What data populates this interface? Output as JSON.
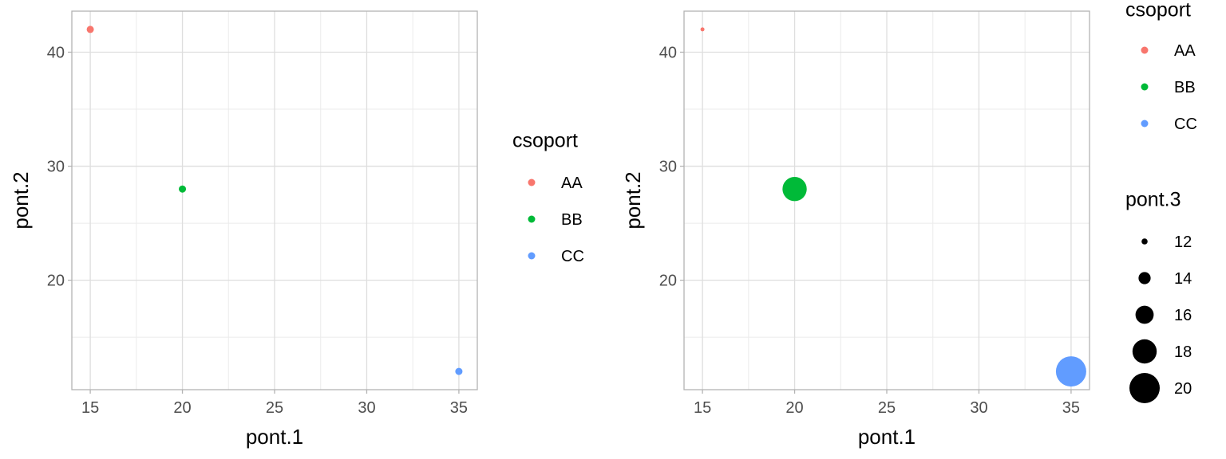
{
  "chart_data": [
    {
      "type": "scatter",
      "xlabel": "pont.1",
      "ylabel": "pont.2",
      "xlim": [
        14,
        36
      ],
      "ylim": [
        10.4,
        43.6
      ],
      "xticks": [
        15,
        20,
        25,
        30,
        35
      ],
      "yticks": [
        20,
        30,
        40
      ],
      "grid": true,
      "legend_position": "right",
      "color_legend": {
        "title": "csoport",
        "entries": [
          {
            "label": "AA",
            "color": "#F8766D"
          },
          {
            "label": "BB",
            "color": "#00BA38"
          },
          {
            "label": "CC",
            "color": "#619CFF"
          }
        ]
      },
      "points": [
        {
          "x": 15,
          "y": 42,
          "group": "AA"
        },
        {
          "x": 20,
          "y": 28,
          "group": "BB"
        },
        {
          "x": 35,
          "y": 12,
          "group": "CC"
        }
      ]
    },
    {
      "type": "scatter",
      "xlabel": "pont.1",
      "ylabel": "pont.2",
      "xlim": [
        14,
        36
      ],
      "ylim": [
        10.4,
        43.6
      ],
      "xticks": [
        15,
        20,
        25,
        30,
        35
      ],
      "yticks": [
        20,
        30,
        40
      ],
      "grid": true,
      "legend_position": "right",
      "color_legend": {
        "title": "csoport",
        "entries": [
          {
            "label": "AA",
            "color": "#F8766D"
          },
          {
            "label": "BB",
            "color": "#00BA38"
          },
          {
            "label": "CC",
            "color": "#619CFF"
          }
        ]
      },
      "size_legend": {
        "title": "pont.3",
        "entries": [
          {
            "label": "12",
            "value": 12
          },
          {
            "label": "14",
            "value": 14
          },
          {
            "label": "16",
            "value": 16
          },
          {
            "label": "18",
            "value": 18
          },
          {
            "label": "20",
            "value": 20
          }
        ]
      },
      "points": [
        {
          "x": 15,
          "y": 42,
          "group": "AA",
          "size": 11
        },
        {
          "x": 20,
          "y": 28,
          "group": "BB",
          "size": 18
        },
        {
          "x": 35,
          "y": 12,
          "group": "CC",
          "size": 20
        }
      ]
    }
  ]
}
